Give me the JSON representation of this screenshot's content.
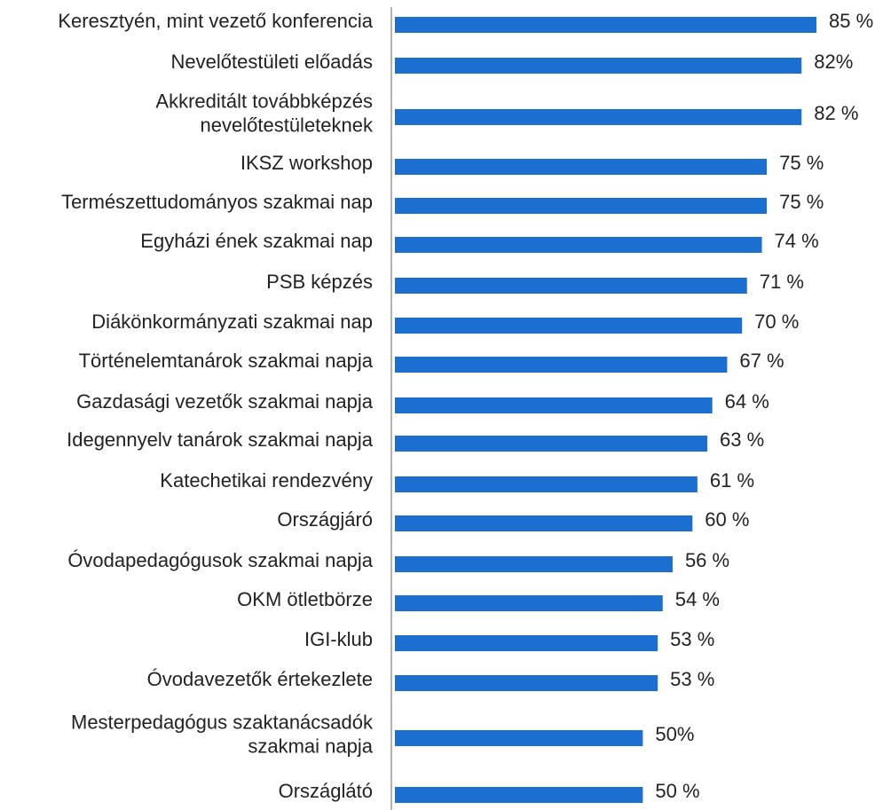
{
  "chart_data": {
    "type": "bar",
    "orientation": "horizontal",
    "color": "#1b6fd0",
    "categories": [
      "Keresztyén, mint vezető konferencia",
      "Nevelőtestületi előadás",
      "Akkreditált továbbképzés\nnevelőtestületeknek",
      "IKSZ workshop",
      "Természettudományos szakmai nap",
      "Egyházi ének szakmai nap",
      "PSB képzés",
      "Diákönkormányzati szakmai nap",
      "Történelemtanárok szakmai napja",
      "Gazdasági vezetők szakmai napja",
      "Idegennyelv tanárok szakmai napja",
      "Katechetikai rendezvény",
      "Országjáró",
      "Óvodapedagógusok szakmai napja",
      "OKM ötletbörze",
      "IGI-klub",
      "Óvodavezetők értekezlete",
      "Mesterpedagógus szaktanácsadók\nszakmai napja",
      "Országlátó"
    ],
    "values": [
      85,
      82,
      82,
      75,
      75,
      74,
      71,
      70,
      67,
      64,
      63,
      61,
      60,
      56,
      54,
      53,
      53,
      50,
      50
    ],
    "value_labels": [
      "85 %",
      "82%",
      "82 %",
      "75 %",
      "75 %",
      "74 %",
      "71 %",
      "70 %",
      "67 %",
      "64 %",
      "63 %",
      "61 %",
      "60 %",
      "56 %",
      "54 %",
      "53 %",
      "53 %",
      "50%",
      "50 %"
    ]
  }
}
